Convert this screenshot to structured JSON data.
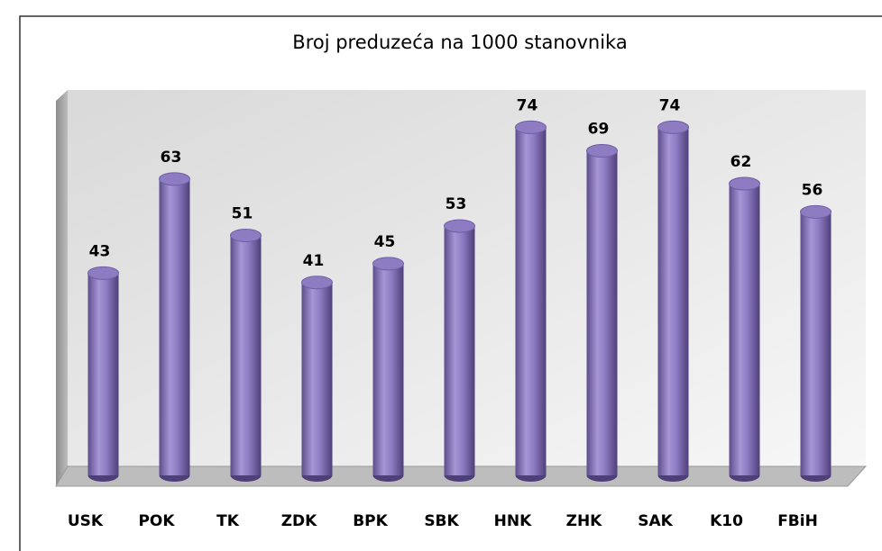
{
  "chart_data": {
    "type": "bar",
    "title": "Broj preduzeća na 1000 stanovnika",
    "categories": [
      "USK",
      "POK",
      "TK",
      "ZDK",
      "BPK",
      "SBK",
      "HNK",
      "ZHK",
      "SAK",
      "K10",
      "FBiH"
    ],
    "values": [
      43,
      63,
      51,
      41,
      45,
      53,
      74,
      69,
      74,
      62,
      56
    ],
    "color": "#8e7cc3",
    "ylim": [
      0,
      80
    ]
  }
}
